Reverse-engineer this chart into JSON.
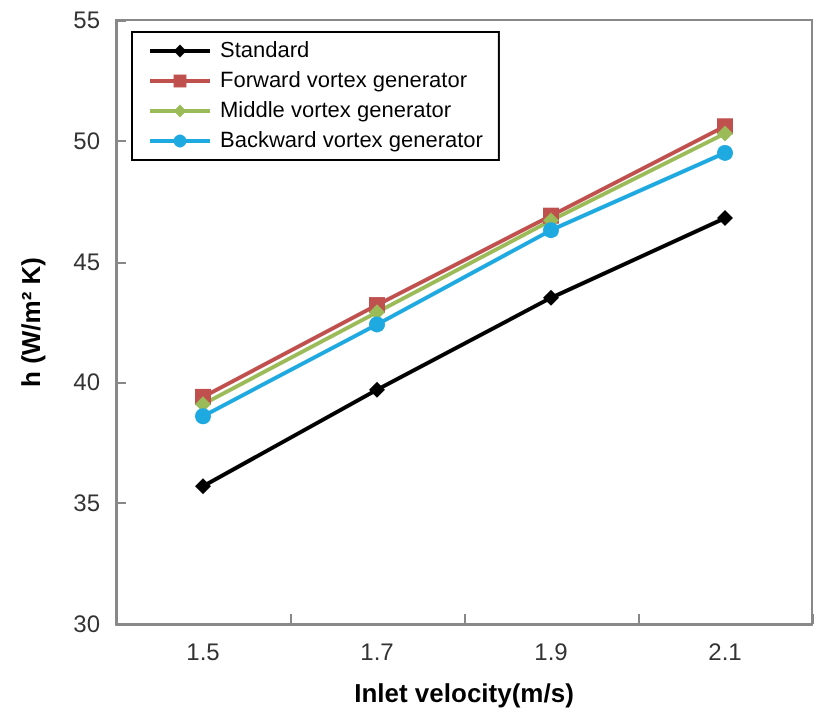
{
  "chart_data": {
    "type": "line",
    "xlabel": "Inlet velocity(m/s)",
    "ylabel": "h (W/m² K)",
    "categories": [
      "1.5",
      "1.7",
      "1.9",
      "2.1"
    ],
    "series": [
      {
        "name": "Standard",
        "color": "#000000",
        "marker": "diamond",
        "values": [
          35.7,
          39.7,
          43.5,
          46.8
        ]
      },
      {
        "name": "Forward vortex generator",
        "color": "#c0504d",
        "marker": "square",
        "values": [
          39.4,
          43.2,
          46.9,
          50.6
        ]
      },
      {
        "name": "Middle vortex generator",
        "color": "#9bbb59",
        "marker": "diamond",
        "values": [
          39.1,
          42.9,
          46.7,
          50.3
        ]
      },
      {
        "name": "Backward vortex generator",
        "color": "#1fa9e1",
        "marker": "circle",
        "values": [
          38.6,
          42.4,
          46.3,
          49.5
        ]
      }
    ],
    "ylim": [
      30,
      55
    ],
    "yticks": [
      30,
      35,
      40,
      45,
      50,
      55
    ],
    "grid": false,
    "legend": "top left"
  }
}
